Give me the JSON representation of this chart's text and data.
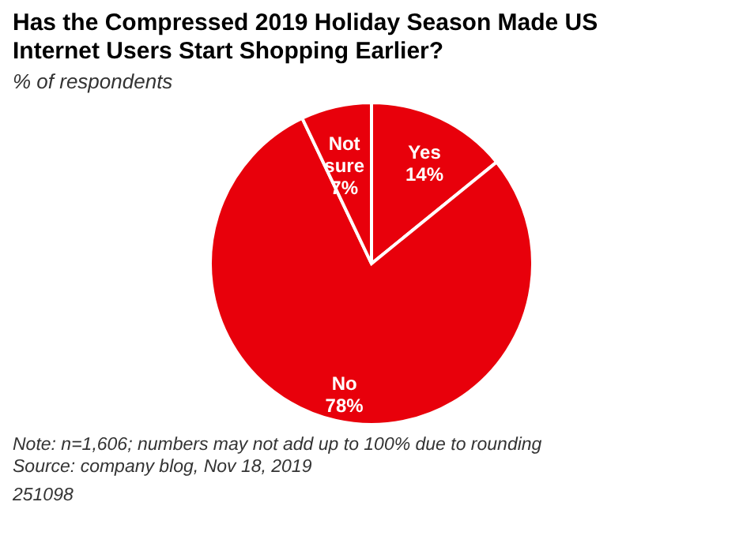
{
  "chart_data": {
    "type": "pie",
    "title": "Has the Compressed 2019 Holiday Season Made US Internet Users Start Shopping Earlier?",
    "subtitle": "% of respondents",
    "categories": [
      "Yes",
      "No",
      "Not sure"
    ],
    "values": [
      14,
      78,
      7
    ],
    "value_labels": [
      "14%",
      "78%",
      "7%"
    ],
    "colors": [
      "#e8000b",
      "#e8000b",
      "#e8000b"
    ],
    "annotations": [
      "Note: n=1,606; numbers may not add up to 100% due to rounding",
      "Source: company blog, Nov 18, 2019",
      "251098"
    ]
  }
}
